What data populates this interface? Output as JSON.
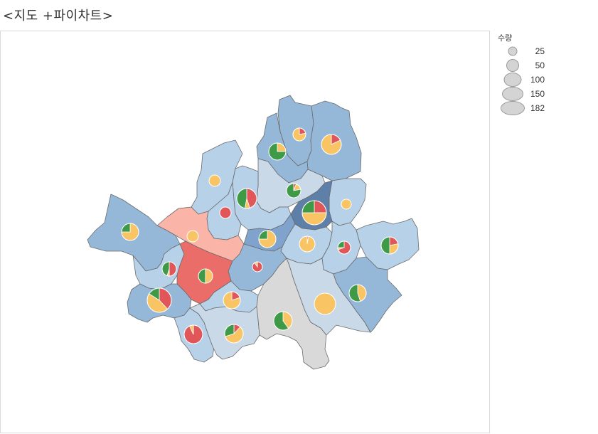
{
  "title": "<지도 +파이차트>",
  "legend": {
    "title": "수량",
    "items": [
      {
        "label": "25",
        "value": 25
      },
      {
        "label": "50",
        "value": 50
      },
      {
        "label": "100",
        "value": 100
      },
      {
        "label": "150",
        "value": 150
      },
      {
        "label": "182",
        "value": 182
      }
    ]
  },
  "colors": {
    "pie_red": "#e15759",
    "pie_yellow": "#f9c463",
    "pie_green": "#3e9a47",
    "region_very_light": "#c9d9e8",
    "region_light": "#b7d1e8",
    "region_mid": "#95b7d8",
    "region_dark": "#5d7fa8",
    "region_pink": "#fbb5a8",
    "region_red": "#ea6d6a",
    "region_gray": "#d9d9d9",
    "border": "#6b6b6b"
  }
}
